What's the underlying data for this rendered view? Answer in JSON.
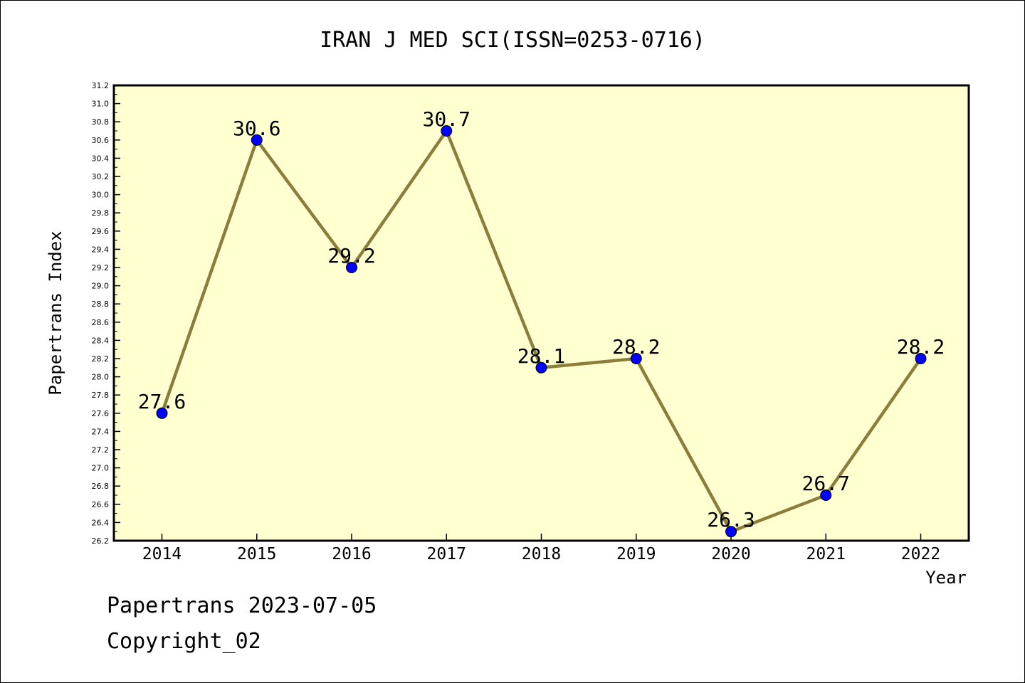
{
  "chart_data": {
    "type": "line",
    "title": "IRAN J MED SCI(ISSN=0253-0716)",
    "xlabel": "Year",
    "ylabel": "Papertrans Index",
    "x": [
      "2014",
      "2015",
      "2016",
      "2017",
      "2018",
      "2019",
      "2020",
      "2021",
      "2022"
    ],
    "series": [
      {
        "values": [
          27.6,
          30.6,
          29.2,
          30.7,
          28.1,
          28.2,
          26.3,
          26.7,
          28.2
        ]
      }
    ],
    "data_labels": [
      "27.6",
      "30.6",
      "29.2",
      "30.7",
      "28.1",
      "28.2",
      "26.3",
      "26.7",
      "28.2"
    ],
    "y_ticks": [
      "26.2",
      "26.4",
      "26.6",
      "26.8",
      "27.0",
      "27.2",
      "27.4",
      "27.6",
      "27.8",
      "28.0",
      "28.2",
      "28.4",
      "28.6",
      "28.8",
      "29.0",
      "29.2",
      "29.4",
      "29.6",
      "29.8",
      "30.0",
      "30.2",
      "30.4",
      "30.6",
      "30.8",
      "31.0",
      "31.2"
    ],
    "ylim": [
      26.2,
      31.2
    ],
    "grid": false,
    "colors": {
      "plot_background": "#ffffd0",
      "line": "#8b7d3a",
      "marker": "#0000ff"
    }
  },
  "footer": {
    "line1": "Papertrans 2023-07-05",
    "line2": "Copyright_02"
  }
}
